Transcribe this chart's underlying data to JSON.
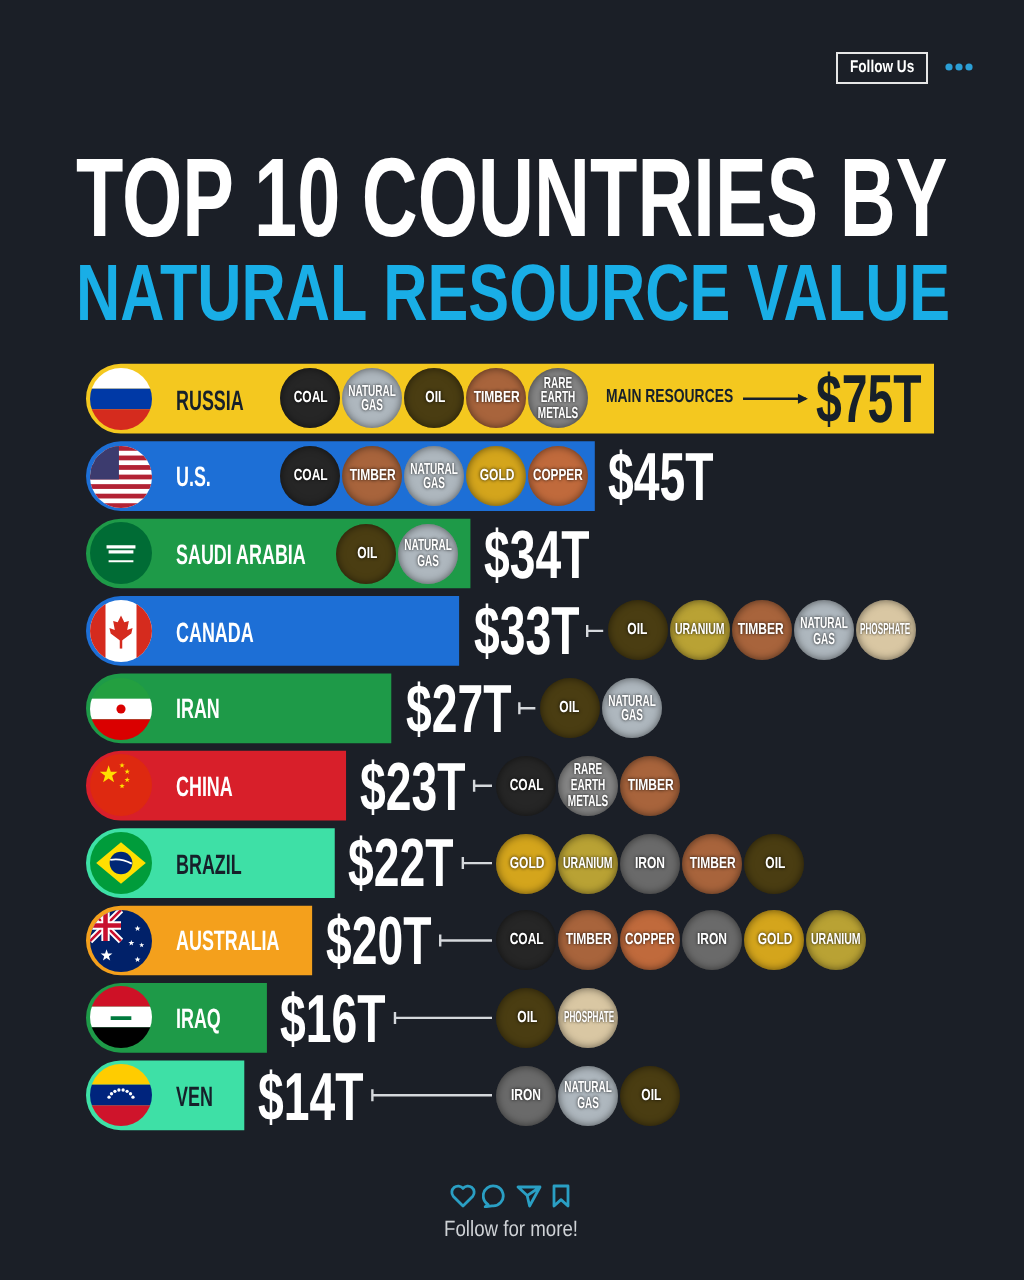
{
  "chart_data": {
    "type": "bar",
    "orientation": "horizontal",
    "title": "TOP 10 COUNTRIES BY",
    "subtitle": "NATURAL RESOURCE VALUE",
    "categories": [
      "RUSSIA",
      "U.S.",
      "SAUDI ARABIA",
      "CANADA",
      "IRAN",
      "CHINA",
      "BRAZIL",
      "AUSTRALIA",
      "IRAQ",
      "VEN"
    ],
    "values": [
      75,
      45,
      34,
      33,
      27,
      23,
      22,
      20,
      16,
      14
    ],
    "colors": [
      "#f4c81f",
      "#1d6fd6",
      "#1e9a48",
      "#1d6fd6",
      "#1e9a48",
      "#d81f2a",
      "#3ee0a6",
      "#f4a01c",
      "#1e9a48",
      "#3ee0a6"
    ],
    "value_labels": [
      "$75T",
      "$45T",
      "$34T",
      "$33T",
      "$27T",
      "$23T",
      "$22T",
      "$20T",
      "$16T",
      "$14T"
    ],
    "xlim": [
      0,
      75
    ],
    "tick_labels": "y",
    "annotations": [
      "Follow Us",
      {
        "text": "COAL",
        "y": "RUSSIA"
      },
      {
        "text": "NATURAL GAS",
        "y": "RUSSIA"
      },
      {
        "text": "OIL",
        "y": "RUSSIA"
      },
      {
        "text": "TIMBER",
        "y": "RUSSIA"
      },
      {
        "text": "RARE EARTH METALS",
        "y": "RUSSIA"
      },
      "MAIN RESOURCES",
      {
        "text": "COAL",
        "y": "U.S."
      },
      {
        "text": "TIMBER",
        "y": "U.S."
      },
      {
        "text": "NATURAL GAS",
        "y": "U.S."
      },
      {
        "text": "GOLD",
        "y": "U.S."
      },
      {
        "text": "COPPER",
        "y": "U.S."
      },
      {
        "text": "OIL",
        "y": "SAUDI ARABIA"
      },
      {
        "text": "NATURAL GAS",
        "y": "SAUDI ARABIA"
      },
      {
        "text": "OIL",
        "y": "CANADA"
      },
      {
        "text": "URANIUM",
        "y": "CANADA"
      },
      {
        "text": "TIMBER",
        "y": "CANADA"
      },
      {
        "text": "NATURAL GAS",
        "y": "CANADA"
      },
      {
        "text": "PHOSPHATE",
        "y": "CANADA"
      },
      {
        "text": "OIL",
        "y": "IRAN"
      },
      {
        "text": "NATURAL GAS",
        "y": "IRAN"
      },
      {
        "text": "COAL",
        "y": "CHINA"
      },
      {
        "text": "RARE EARTH METALS",
        "y": "CHINA"
      },
      {
        "text": "TIMBER",
        "y": "CHINA"
      },
      {
        "text": "GOLD",
        "y": "BRAZIL"
      },
      {
        "text": "URANIUM",
        "y": "BRAZIL"
      },
      {
        "text": "IRON",
        "y": "BRAZIL"
      },
      {
        "text": "TIMBER",
        "y": "BRAZIL"
      },
      {
        "text": "OIL",
        "y": "BRAZIL"
      },
      {
        "text": "COAL",
        "y": "AUSTRALIA"
      },
      {
        "text": "TIMBER",
        "y": "AUSTRALIA"
      },
      {
        "text": "COPPER",
        "y": "AUSTRALIA"
      },
      {
        "text": "IRON",
        "y": "AUSTRALIA"
      },
      {
        "text": "GOLD",
        "y": "AUSTRALIA"
      },
      {
        "text": "URANIUM",
        "y": "AUSTRALIA"
      },
      {
        "text": "OIL",
        "y": "IRAQ"
      },
      {
        "text": "PHOSPHATE",
        "y": "IRAQ"
      },
      {
        "text": "IRON",
        "y": "VEN"
      },
      {
        "text": "NATURAL GAS",
        "y": "VEN"
      },
      {
        "text": "OIL",
        "y": "VEN"
      },
      "Follow for more!"
    ]
  }
}
